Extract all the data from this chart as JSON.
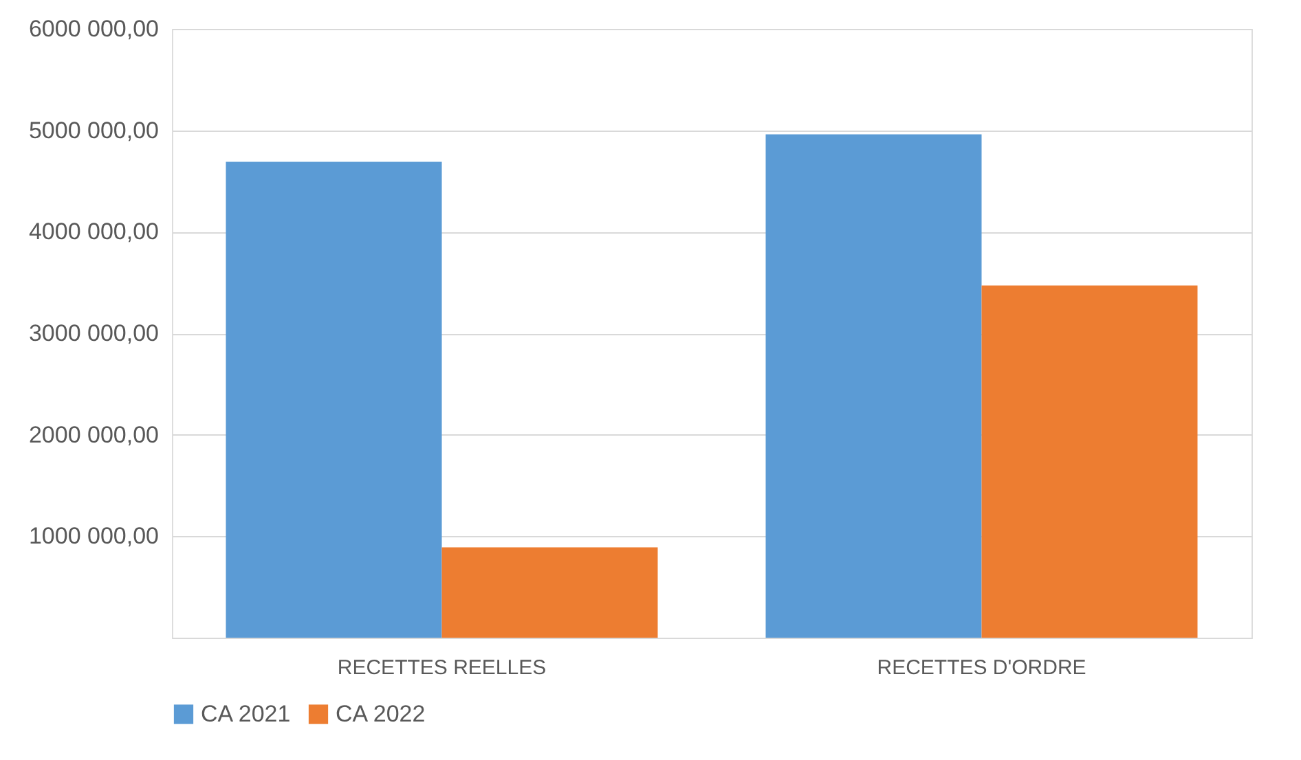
{
  "chart_data": {
    "type": "bar",
    "categories": [
      "RECETTES REELLES",
      "RECETTES D'ORDRE"
    ],
    "series": [
      {
        "name": "CA 2021",
        "color": "#5b9bd5",
        "values": [
          4690000,
          4960000
        ]
      },
      {
        "name": "CA 2022",
        "color": "#ed7d31",
        "values": [
          890000,
          3470000
        ]
      }
    ],
    "ylim": [
      0,
      6000000
    ],
    "yticks": [
      {
        "value": 0,
        "label": null
      },
      {
        "value": 1000000,
        "label": "1000 000,00"
      },
      {
        "value": 2000000,
        "label": "2000 000,00"
      },
      {
        "value": 3000000,
        "label": "3000 000,00"
      },
      {
        "value": 4000000,
        "label": "4000 000,00"
      },
      {
        "value": 5000000,
        "label": "5000 000,00"
      },
      {
        "value": 6000000,
        "label": "6000 000,00"
      }
    ],
    "grid": "y",
    "legend": "bottom"
  }
}
